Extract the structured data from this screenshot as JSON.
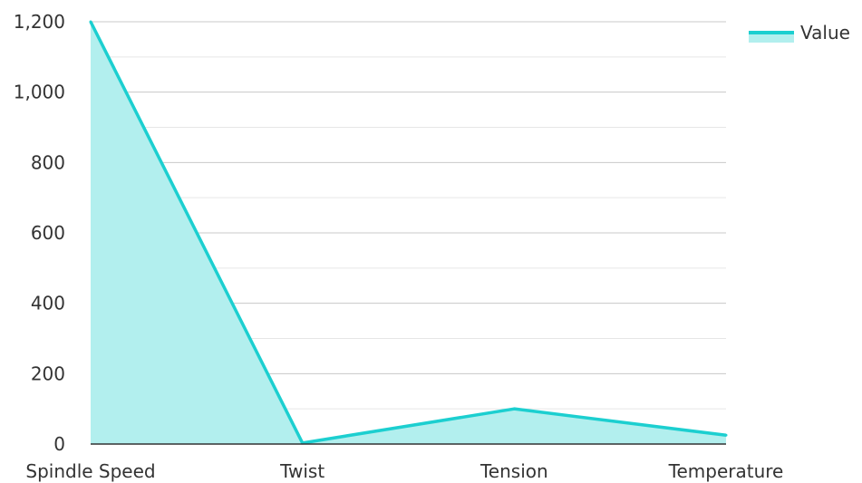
{
  "chart_data": {
    "type": "area",
    "categories": [
      "Spindle Speed",
      "Twist",
      "Tension",
      "Temperature"
    ],
    "series": [
      {
        "name": "Value",
        "values": [
          1200,
          3,
          100,
          25
        ]
      }
    ],
    "ylim": [
      0,
      1200
    ],
    "yticks": [
      0,
      200,
      400,
      600,
      800,
      1000,
      1200
    ],
    "ytick_labels": [
      "0",
      "200",
      "400",
      "600",
      "800",
      "1,000",
      "1,200"
    ],
    "grid": true,
    "legend": "top-right",
    "colors": {
      "line": "#1ccfd0",
      "fill": "#b2efee",
      "grid": "#c8c8c8",
      "axis": "#333333"
    }
  }
}
